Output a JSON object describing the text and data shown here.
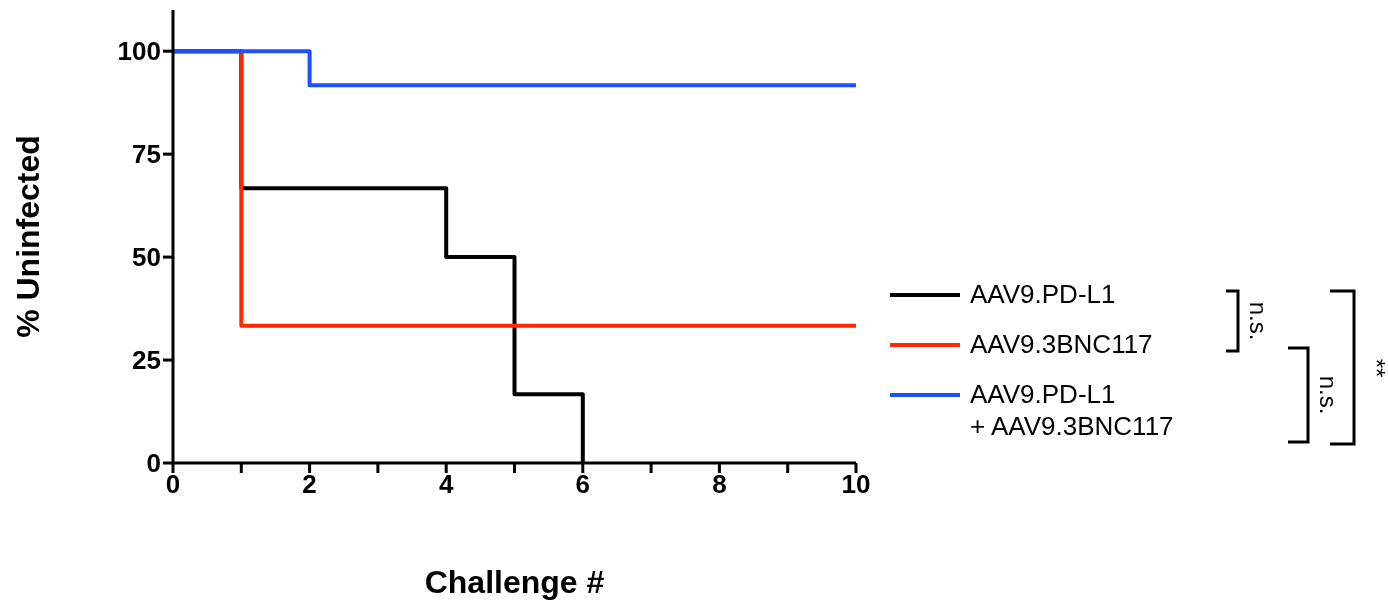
{
  "chart_data": {
    "type": "step",
    "xlabel": "Challenge #",
    "ylabel": "% Uninfected",
    "xlim": [
      0,
      10
    ],
    "xticks": [
      0,
      {
        "value": 1,
        "label": null
      },
      2,
      {
        "value": 3,
        "label": null
      },
      4,
      {
        "value": 5,
        "label": null
      },
      6,
      {
        "value": 7,
        "label": null
      },
      8,
      {
        "value": 9,
        "label": null
      },
      10
    ],
    "ylim": [
      0,
      110
    ],
    "yticks": [
      0,
      25,
      50,
      75,
      100
    ],
    "legend": "right",
    "series": [
      {
        "name": "AAV9.PD-L1",
        "color": "#000000",
        "x": [
          0,
          1,
          4,
          5,
          6
        ],
        "values": [
          100,
          66.7,
          50,
          16.7,
          0
        ]
      },
      {
        "name": "AAV9.3BNC117",
        "color": "#ff2a00",
        "x": [
          0,
          1,
          10
        ],
        "values": [
          100,
          33.3,
          33.3
        ]
      },
      {
        "name": "AAV9.PD-L1\n+ AAV9.3BNC117",
        "color": "#1f4fff",
        "x": [
          0,
          2,
          10
        ],
        "values": [
          100,
          91.7,
          91.7
        ]
      }
    ],
    "annotations": [
      "n.s.",
      "n.s.",
      "**"
    ]
  }
}
